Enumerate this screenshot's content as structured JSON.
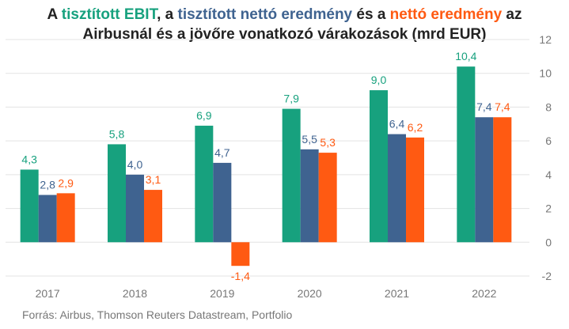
{
  "title": {
    "p1": "A ",
    "ebit": "tisztított EBIT",
    "p2": ", a ",
    "net_clean": "tisztított nettó eredmény",
    "p3": " és a ",
    "net": "nettó eredmény",
    "p4": " az",
    "line2": "Airbusnál és a jövőre vonatkozó várakozások (mrd EUR)"
  },
  "source": "Forrás: Airbus, Thomson Reuters Datastream, Portfolio",
  "colors": {
    "ebit": "#17a17e",
    "net_clean": "#3f6390",
    "net": "#ff5a12",
    "grid": "#e3e3e3"
  },
  "chart_data": {
    "type": "bar",
    "categories": [
      "2017",
      "2018",
      "2019",
      "2020",
      "2021",
      "2022"
    ],
    "series": [
      {
        "name": "tisztított EBIT",
        "values": [
          4.3,
          5.8,
          6.9,
          7.9,
          9.0,
          10.4
        ],
        "labels": [
          "4,3",
          "5,8",
          "6,9",
          "7,9",
          "9,0",
          "10,4"
        ]
      },
      {
        "name": "tisztított nettó eredmény",
        "values": [
          2.8,
          4.0,
          4.7,
          5.5,
          6.4,
          7.4
        ],
        "labels": [
          "2,8",
          "4,0",
          "4,7",
          "5,5",
          "6,4",
          "7,4"
        ]
      },
      {
        "name": "nettó eredmény",
        "values": [
          2.9,
          3.1,
          -1.4,
          5.3,
          6.2,
          7.4
        ],
        "labels": [
          "2,9",
          "3,1",
          "-1,4",
          "5,3",
          "6,2",
          "7,4"
        ]
      }
    ],
    "ylim": [
      -2,
      12
    ],
    "yticks": [
      -2,
      0,
      2,
      4,
      6,
      8,
      10,
      12
    ],
    "yaxis_side": "right",
    "grid": true,
    "legend": "none"
  }
}
